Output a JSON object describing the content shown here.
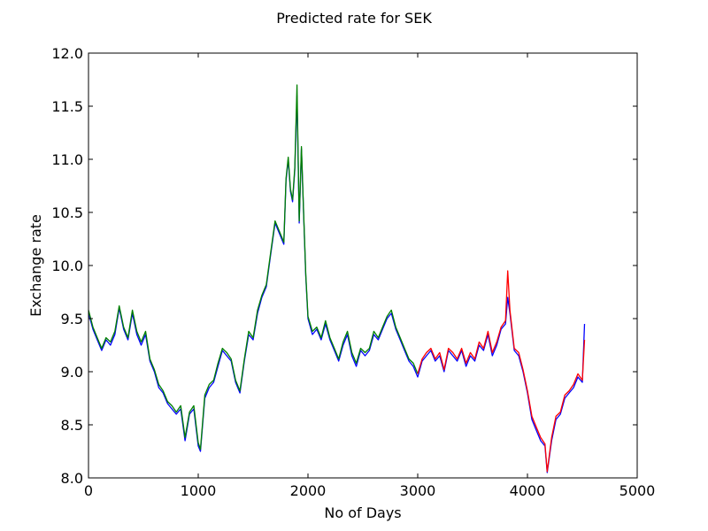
{
  "chart_data": {
    "type": "line",
    "title": "Predicted rate for SEK",
    "xlabel": "No of Days",
    "ylabel": "Exchange rate",
    "xlim": [
      0,
      5000
    ],
    "ylim": [
      8.0,
      12.0
    ],
    "xticks": [
      0,
      1000,
      2000,
      3000,
      4000,
      5000
    ],
    "yticks": [
      8.0,
      8.5,
      9.0,
      9.5,
      10.0,
      10.5,
      11.0,
      11.5,
      12.0
    ],
    "xtick_labels": [
      "0",
      "1000",
      "2000",
      "3000",
      "4000",
      "5000"
    ],
    "ytick_labels": [
      "8.0",
      "8.5",
      "9.0",
      "9.5",
      "10.0",
      "10.5",
      "11.0",
      "11.5",
      "12.0"
    ],
    "grid": false,
    "series": [
      {
        "color": "#0000ff",
        "x": [
          0,
          40,
          80,
          120,
          160,
          200,
          240,
          280,
          320,
          360,
          400,
          440,
          480,
          520,
          560,
          600,
          640,
          680,
          720,
          760,
          800,
          840,
          880,
          920,
          960,
          1000,
          1020,
          1060,
          1100,
          1140,
          1180,
          1220,
          1260,
          1300,
          1340,
          1380,
          1420,
          1460,
          1500,
          1540,
          1580,
          1620,
          1660,
          1700,
          1740,
          1780,
          1800,
          1820,
          1840,
          1860,
          1880,
          1900,
          1920,
          1940,
          1960,
          1980,
          2000,
          2040,
          2080,
          2120,
          2160,
          2200,
          2240,
          2280,
          2320,
          2360,
          2400,
          2440,
          2480,
          2520,
          2560,
          2600,
          2640,
          2680,
          2720,
          2760,
          2800,
          2840,
          2880,
          2920,
          2960,
          3000,
          3040,
          3080,
          3120,
          3160,
          3200,
          3240,
          3280,
          3320,
          3360,
          3400,
          3440,
          3480,
          3520,
          3560,
          3600,
          3640,
          3680,
          3720,
          3760,
          3800,
          3820,
          3840,
          3880,
          3920,
          3960,
          4000,
          4040,
          4080,
          4120,
          4160,
          4180,
          4220,
          4260,
          4300,
          4340,
          4380,
          4420,
          4460,
          4500,
          4520
        ],
        "y": [
          9.55,
          9.4,
          9.3,
          9.2,
          9.3,
          9.25,
          9.35,
          9.6,
          9.4,
          9.3,
          9.55,
          9.35,
          9.25,
          9.35,
          9.1,
          9.0,
          8.85,
          8.8,
          8.7,
          8.65,
          8.6,
          8.65,
          8.35,
          8.6,
          8.65,
          8.3,
          8.25,
          8.75,
          8.85,
          8.9,
          9.05,
          9.2,
          9.15,
          9.1,
          8.9,
          8.8,
          9.1,
          9.35,
          9.3,
          9.55,
          9.7,
          9.8,
          10.1,
          10.4,
          10.3,
          10.2,
          10.8,
          11.0,
          10.7,
          10.6,
          10.9,
          11.6,
          10.4,
          11.1,
          10.5,
          9.9,
          9.5,
          9.35,
          9.4,
          9.3,
          9.45,
          9.3,
          9.2,
          9.1,
          9.25,
          9.35,
          9.15,
          9.05,
          9.2,
          9.15,
          9.2,
          9.35,
          9.3,
          9.4,
          9.5,
          9.55,
          9.4,
          9.3,
          9.2,
          9.1,
          9.05,
          8.95,
          9.1,
          9.15,
          9.2,
          9.1,
          9.15,
          9.0,
          9.2,
          9.15,
          9.1,
          9.2,
          9.05,
          9.15,
          9.1,
          9.25,
          9.2,
          9.35,
          9.15,
          9.25,
          9.4,
          9.45,
          9.7,
          9.55,
          9.2,
          9.15,
          9.0,
          8.8,
          8.55,
          8.45,
          8.35,
          8.3,
          8.05,
          8.35,
          8.55,
          8.6,
          8.75,
          8.8,
          8.85,
          8.95,
          8.9,
          9.45
        ]
      },
      {
        "color": "#008000",
        "x": [
          0,
          40,
          80,
          120,
          160,
          200,
          240,
          280,
          320,
          360,
          400,
          440,
          480,
          520,
          560,
          600,
          640,
          680,
          720,
          760,
          800,
          840,
          880,
          920,
          960,
          1000,
          1020,
          1060,
          1100,
          1140,
          1180,
          1220,
          1260,
          1300,
          1340,
          1380,
          1420,
          1460,
          1500,
          1540,
          1580,
          1620,
          1660,
          1700,
          1740,
          1780,
          1800,
          1820,
          1840,
          1860,
          1880,
          1900,
          1920,
          1940,
          1960,
          1980,
          2000,
          2040,
          2080,
          2120,
          2160,
          2200,
          2240,
          2280,
          2320,
          2360,
          2400,
          2440,
          2480,
          2520,
          2560,
          2600,
          2640,
          2680,
          2720,
          2760,
          2800,
          2840,
          2880,
          2920,
          2960,
          3000
        ],
        "y": [
          9.58,
          9.42,
          9.32,
          9.22,
          9.32,
          9.28,
          9.38,
          9.62,
          9.42,
          9.32,
          9.58,
          9.38,
          9.28,
          9.38,
          9.12,
          9.02,
          8.88,
          8.82,
          8.72,
          8.68,
          8.62,
          8.68,
          8.38,
          8.62,
          8.68,
          8.33,
          8.27,
          8.78,
          8.88,
          8.92,
          9.08,
          9.22,
          9.18,
          9.12,
          8.92,
          8.82,
          9.12,
          9.38,
          9.32,
          9.58,
          9.72,
          9.82,
          10.12,
          10.42,
          10.32,
          10.22,
          10.82,
          11.02,
          10.72,
          10.62,
          10.92,
          11.7,
          10.42,
          11.12,
          10.52,
          9.92,
          9.52,
          9.38,
          9.42,
          9.32,
          9.48,
          9.32,
          9.22,
          9.12,
          9.28,
          9.38,
          9.18,
          9.08,
          9.22,
          9.18,
          9.22,
          9.38,
          9.32,
          9.42,
          9.52,
          9.58,
          9.42,
          9.32,
          9.22,
          9.12,
          9.08,
          8.98
        ]
      },
      {
        "color": "#ff0000",
        "x": [
          3000,
          3040,
          3080,
          3120,
          3160,
          3200,
          3240,
          3280,
          3320,
          3360,
          3400,
          3440,
          3480,
          3520,
          3560,
          3600,
          3640,
          3680,
          3720,
          3760,
          3800,
          3820,
          3840,
          3880,
          3920,
          3960,
          4000,
          4040,
          4080,
          4120,
          4160,
          4180,
          4220,
          4260,
          4300,
          4340,
          4380,
          4420,
          4460,
          4500,
          4520
        ],
        "y": [
          8.98,
          9.12,
          9.18,
          9.22,
          9.12,
          9.18,
          9.02,
          9.22,
          9.18,
          9.12,
          9.22,
          9.08,
          9.18,
          9.12,
          9.28,
          9.22,
          9.38,
          9.18,
          9.28,
          9.42,
          9.48,
          9.95,
          9.58,
          9.22,
          9.18,
          9.02,
          8.82,
          8.58,
          8.48,
          8.38,
          8.32,
          8.06,
          8.38,
          8.58,
          8.62,
          8.78,
          8.82,
          8.88,
          8.98,
          8.92,
          9.3
        ]
      }
    ]
  }
}
